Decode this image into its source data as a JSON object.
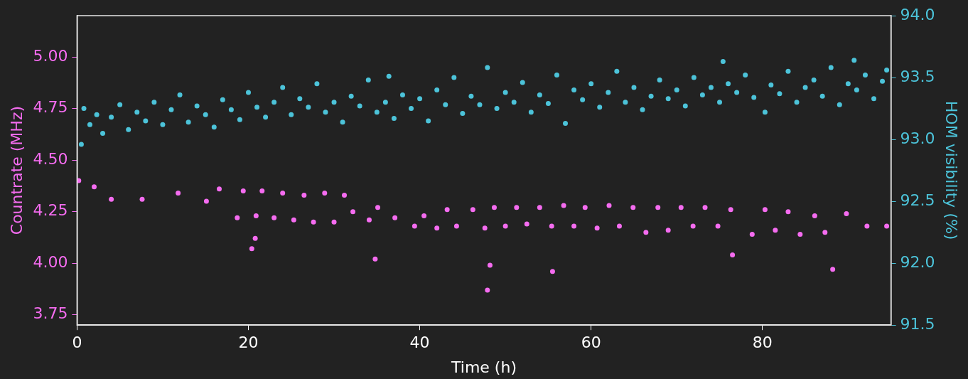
{
  "chart_data": {
    "type": "scatter",
    "xlabel": "Time (h)",
    "ylabel": "Countrate (MHz)",
    "y2label": "HOM visibility (%)",
    "marker": "circle",
    "xlim": [
      0,
      95
    ],
    "xticks": [
      0,
      20,
      40,
      60,
      80
    ],
    "ylim": [
      3.7,
      5.2
    ],
    "yticks": [
      3.75,
      {
        "value": 4,
        "label": "4.00"
      },
      4.25,
      {
        "value": 4.5,
        "label": "4.50"
      },
      4.75,
      {
        "value": 5,
        "label": "5.00"
      }
    ],
    "y2lim": [
      91.5,
      94.0
    ],
    "y2ticks": [
      91.5,
      {
        "value": 92,
        "label": "92.0"
      },
      92.5,
      {
        "value": 93,
        "label": "93.0"
      },
      93.5,
      {
        "value": 94,
        "label": "94.0"
      }
    ],
    "series": [
      {
        "color": "#f56cf0",
        "axis": "y",
        "x": [
          0.2,
          2.0,
          4.0,
          7.6,
          11.8,
          15.1,
          16.6,
          18.7,
          19.4,
          20.9,
          21.6,
          23.0,
          24.0,
          25.3,
          26.5,
          27.6,
          28.9,
          30.0,
          31.2,
          32.2,
          34.1,
          35.1,
          37.1,
          39.4,
          40.5,
          42.0,
          43.2,
          44.3,
          46.2,
          47.6,
          48.7,
          50.0,
          51.3,
          52.5,
          54.0,
          55.4,
          56.8,
          58.0,
          59.3,
          60.7,
          62.1,
          63.3,
          64.9,
          66.4,
          67.8,
          69.0,
          70.5,
          71.9,
          73.3,
          74.8,
          76.3,
          78.8,
          80.3,
          81.5,
          83.0,
          84.4,
          86.1,
          87.3,
          89.8,
          92.2,
          94.5,
          20.4,
          34.8,
          47.9,
          48.2,
          55.5,
          88.2,
          76.5,
          20.8
        ],
        "values": [
          4.4,
          4.37,
          4.31,
          4.31,
          4.34,
          4.3,
          4.36,
          4.22,
          4.35,
          4.23,
          4.35,
          4.22,
          4.34,
          4.21,
          4.33,
          4.2,
          4.34,
          4.2,
          4.33,
          4.25,
          4.21,
          4.27,
          4.22,
          4.18,
          4.23,
          4.17,
          4.26,
          4.18,
          4.26,
          4.17,
          4.27,
          4.18,
          4.27,
          4.19,
          4.27,
          4.18,
          4.28,
          4.18,
          4.27,
          4.17,
          4.28,
          4.18,
          4.27,
          4.15,
          4.27,
          4.16,
          4.27,
          4.18,
          4.27,
          4.18,
          4.26,
          4.14,
          4.26,
          4.16,
          4.25,
          4.14,
          4.23,
          4.15,
          4.24,
          4.18,
          4.18,
          4.07,
          4.02,
          3.87,
          3.99,
          3.96,
          3.97,
          4.04,
          4.12
        ]
      },
      {
        "color": "#4cc3d9",
        "axis": "y2",
        "x": [
          0.5,
          0.8,
          1.5,
          2.3,
          3,
          4,
          5,
          6,
          7,
          8,
          9,
          10,
          11,
          12,
          13,
          14,
          15,
          16,
          17,
          18,
          19,
          20,
          21,
          22,
          23,
          24,
          25,
          26,
          27,
          28,
          29,
          30,
          31,
          32,
          33,
          34,
          35,
          36,
          36.4,
          37,
          38,
          39,
          40,
          41,
          42,
          43,
          44,
          45,
          46,
          47,
          47.9,
          49,
          50,
          51,
          52,
          53,
          54,
          55,
          56,
          57,
          58,
          59,
          60,
          61,
          62,
          63,
          64,
          65,
          66,
          67,
          68,
          69,
          70,
          71,
          72,
          73,
          74,
          75,
          75.4,
          76,
          77,
          78,
          79,
          80.3,
          81,
          82,
          83,
          84,
          85,
          86,
          87,
          88,
          89,
          90,
          90.7,
          91,
          92,
          93,
          94,
          94.5
        ],
        "values": [
          92.96,
          93.25,
          93.12,
          93.2,
          93.05,
          93.18,
          93.28,
          93.08,
          93.22,
          93.15,
          93.3,
          93.12,
          93.24,
          93.36,
          93.14,
          93.27,
          93.2,
          93.1,
          93.32,
          93.24,
          93.16,
          93.38,
          93.26,
          93.18,
          93.3,
          93.42,
          93.2,
          93.33,
          93.26,
          93.45,
          93.22,
          93.3,
          93.14,
          93.35,
          93.27,
          93.48,
          93.22,
          93.3,
          93.51,
          93.17,
          93.36,
          93.25,
          93.33,
          93.15,
          93.4,
          93.28,
          93.5,
          93.21,
          93.35,
          93.28,
          93.58,
          93.25,
          93.38,
          93.3,
          93.46,
          93.22,
          93.36,
          93.29,
          93.52,
          93.13,
          93.4,
          93.32,
          93.45,
          93.26,
          93.38,
          93.55,
          93.3,
          93.42,
          93.24,
          93.35,
          93.48,
          93.33,
          93.4,
          93.27,
          93.5,
          93.36,
          93.42,
          93.3,
          93.63,
          93.45,
          93.38,
          93.52,
          93.34,
          93.22,
          93.44,
          93.37,
          93.55,
          93.3,
          93.42,
          93.48,
          93.35,
          93.58,
          93.28,
          93.45,
          93.64,
          93.4,
          93.52,
          93.33,
          93.47,
          93.56
        ]
      }
    ]
  }
}
